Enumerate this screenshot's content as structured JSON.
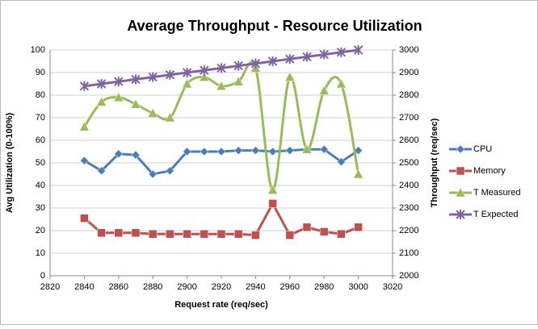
{
  "chart_data": {
    "type": "line",
    "title": "Average Throughput - Resource Utilization",
    "xlabel": "Request rate (req/sec)",
    "ylabel": "Avg Utilization (0-100%)",
    "y2label": "Throughput (req/sec)",
    "x": [
      2840,
      2850,
      2860,
      2870,
      2880,
      2890,
      2900,
      2910,
      2920,
      2930,
      2940,
      2950,
      2960,
      2970,
      2980,
      2990,
      3000
    ],
    "xlim": [
      2820,
      3020
    ],
    "xticks": [
      2820,
      2840,
      2860,
      2880,
      2900,
      2920,
      2940,
      2960,
      2980,
      3000,
      3020
    ],
    "ylim": [
      0,
      100
    ],
    "yticks": [
      0,
      10,
      20,
      30,
      40,
      50,
      60,
      70,
      80,
      90,
      100
    ],
    "y2lim": [
      2000,
      3000
    ],
    "y2ticks": [
      2000,
      2100,
      2200,
      2300,
      2400,
      2500,
      2600,
      2700,
      2800,
      2900,
      3000
    ],
    "grid": true,
    "legend": "right",
    "series": [
      {
        "name": "CPU",
        "color": "#4a7ebb",
        "marker": "diamond",
        "smooth": false,
        "values": [
          51,
          46.5,
          54,
          53.5,
          45,
          46.5,
          55,
          55,
          55,
          55.5,
          55.5,
          55,
          55.5,
          56,
          56,
          50.5,
          55.5
        ]
      },
      {
        "name": "Memory",
        "color": "#c0504d",
        "marker": "square",
        "smooth": false,
        "values": [
          25.5,
          19,
          19,
          19,
          18.5,
          18.5,
          18.5,
          18.5,
          18.5,
          18.5,
          18,
          32,
          18,
          21.5,
          19.5,
          18.5,
          21.5
        ]
      },
      {
        "name": "T Measured",
        "color": "#9bbb59",
        "marker": "triangle",
        "smooth": true,
        "axis": "y2",
        "values": [
          2660,
          2770,
          2790,
          2760,
          2720,
          2700,
          2850,
          2880,
          2840,
          2860,
          2920,
          2380,
          2880,
          2560,
          2820,
          2850,
          2450
        ]
      },
      {
        "name": "T Expected",
        "color": "#8064a2",
        "marker": "x",
        "smooth": false,
        "axis": "y2",
        "values": [
          2840,
          2850,
          2860,
          2870,
          2880,
          2890,
          2900,
          2910,
          2920,
          2930,
          2940,
          2950,
          2960,
          2970,
          2980,
          2990,
          3000
        ]
      }
    ]
  }
}
